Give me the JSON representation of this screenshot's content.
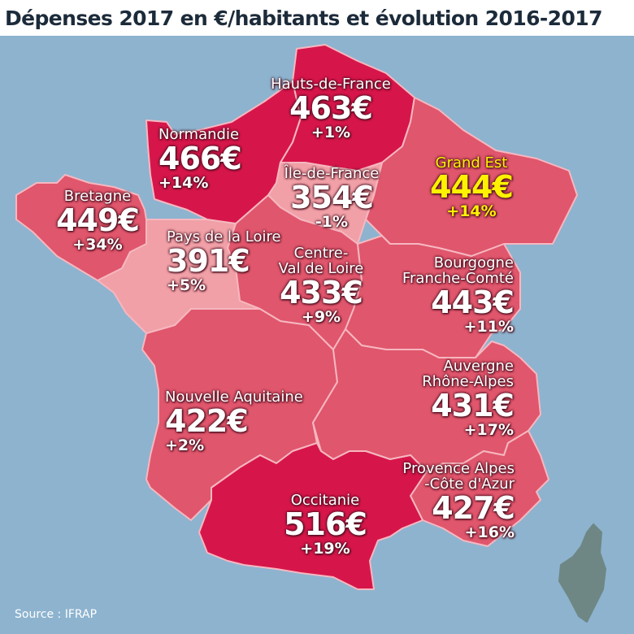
{
  "title": "Dépenses 2017 en €/habitants et évolution 2016-2017",
  "source": "Source : IFRAP",
  "currency": "€",
  "colors": {
    "sea": "#8db3cf",
    "dark": "#d6164a",
    "medium": "#e0566c",
    "light": "#f0a0a6",
    "border": "#f6b7c0",
    "corsica": "#6f8784",
    "highlight_text": "#fff200"
  },
  "regions": [
    {
      "id": "hauts-de-france",
      "name": "Hauts-de-France",
      "value": "463",
      "change": "+1%"
    },
    {
      "id": "normandie",
      "name": "Normandie",
      "value": "466",
      "change": "+14%"
    },
    {
      "id": "ile-de-france",
      "name": "Île-de-France",
      "value": "354",
      "change": "-1%"
    },
    {
      "id": "grand-est",
      "name": "Grand Est",
      "value": "444",
      "change": "+14%"
    },
    {
      "id": "bretagne",
      "name": "Bretagne",
      "value": "449",
      "change": "+34%"
    },
    {
      "id": "pays-de-la-loire",
      "name": "Pays de la Loire",
      "value": "391",
      "change": "+5%"
    },
    {
      "id": "centre-val-de-loire",
      "name": "Centre-",
      "name2": "Val de Loire",
      "value": "433",
      "change": "+9%"
    },
    {
      "id": "bourgogne-franche-comte",
      "name": "Bourgogne",
      "name2": "Franche-Comté",
      "value": "443",
      "change": "+11%"
    },
    {
      "id": "auvergne-rhone-alpes",
      "name": "Auvergne",
      "name2": "Rhône-Alpes",
      "value": "431",
      "change": "+17%"
    },
    {
      "id": "nouvelle-aquitaine",
      "name": "Nouvelle Aquitaine",
      "value": "422",
      "change": "+2%"
    },
    {
      "id": "occitanie",
      "name": "Occitanie",
      "value": "516",
      "change": "+19%"
    },
    {
      "id": "paca",
      "name": "Provence Alpes",
      "name2": "-Côte d'Azur",
      "value": "427",
      "change": "+16%"
    }
  ]
}
